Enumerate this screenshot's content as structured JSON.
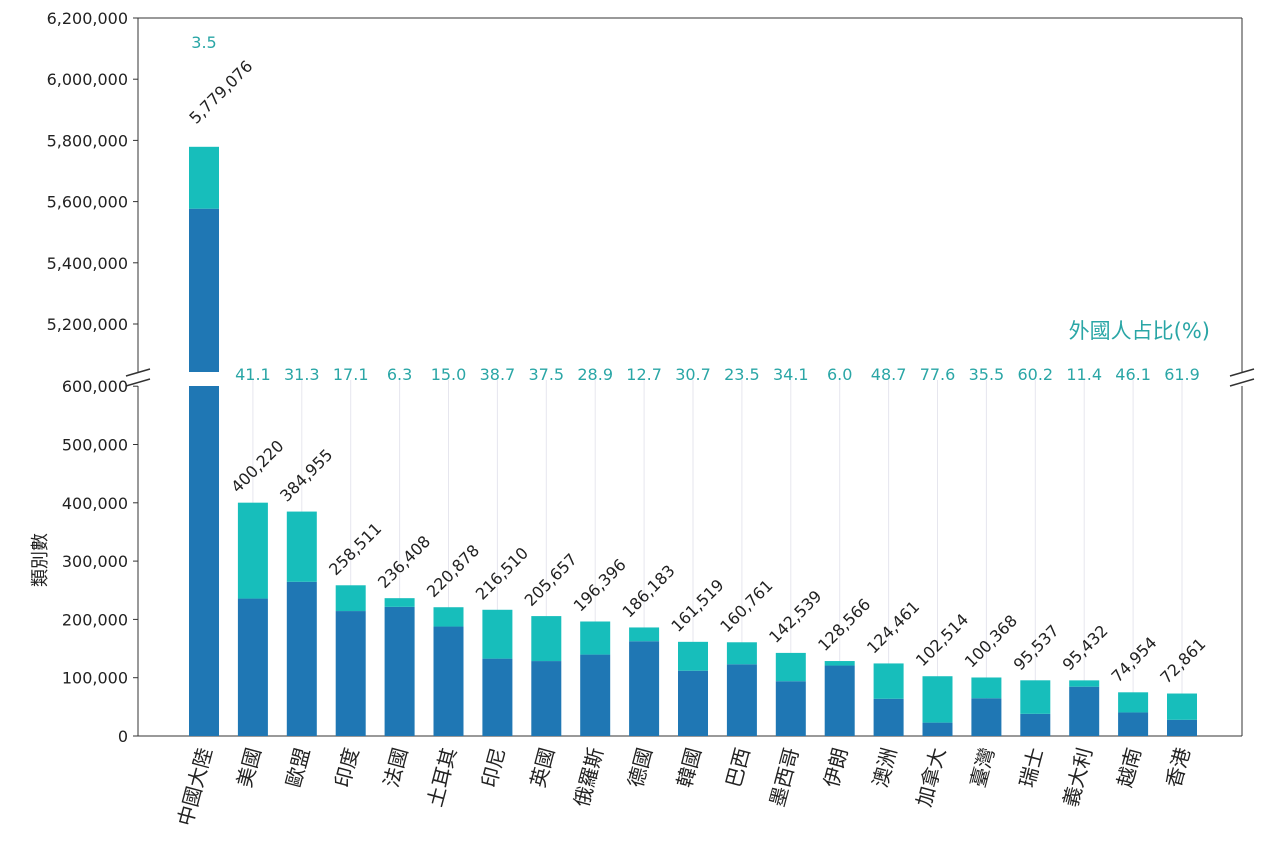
{
  "chart_data": {
    "type": "bar",
    "stacked": true,
    "broken_y_axis": true,
    "ylabel": "類別數",
    "secondary_label": "外國人占比(%)",
    "ylim_lower": [
      0,
      600000
    ],
    "ylim_upper": [
      5100000,
      6200000
    ],
    "yticks_lower": [
      "0",
      "100,000",
      "200,000",
      "300,000",
      "400,000",
      "500,000",
      "600,000"
    ],
    "yticks_upper": [
      "5,200,000",
      "5,400,000",
      "5,600,000",
      "5,800,000",
      "6,000,000",
      "6,200,000"
    ],
    "categories": [
      "中國大陸",
      "美國",
      "歐盟",
      "印度",
      "法國",
      "土耳其",
      "印尼",
      "英國",
      "俄羅斯",
      "德國",
      "韓國",
      "巴西",
      "墨西哥",
      "伊朗",
      "澳洲",
      "加拿大",
      "臺灣",
      "瑞士",
      "義大利",
      "越南",
      "香港"
    ],
    "total_labels": [
      "5,779,076",
      "400,220",
      "384,955",
      "258,511",
      "236,408",
      "220,878",
      "216,510",
      "205,657",
      "196,396",
      "186,183",
      "161,519",
      "160,761",
      "142,539",
      "128,566",
      "124,461",
      "102,514",
      "100,368",
      "95,537",
      "95,432",
      "74,954",
      "72,861"
    ],
    "totals": [
      5779076,
      400220,
      384955,
      258511,
      236408,
      220878,
      216510,
      205657,
      196396,
      186183,
      161519,
      160761,
      142539,
      128566,
      124461,
      102514,
      100368,
      95537,
      95432,
      74954,
      72861
    ],
    "foreign_share_labels": [
      "3.5",
      "41.1",
      "31.3",
      "17.1",
      "6.3",
      "15.0",
      "38.7",
      "37.5",
      "28.9",
      "12.7",
      "30.7",
      "23.5",
      "34.1",
      "6.0",
      "48.7",
      "77.6",
      "35.5",
      "60.2",
      "11.4",
      "46.1",
      "61.9"
    ],
    "foreign_share_pct": [
      3.5,
      41.1,
      31.3,
      17.1,
      6.3,
      15.0,
      38.7,
      37.5,
      28.9,
      12.7,
      30.7,
      23.5,
      34.1,
      6.0,
      48.7,
      77.6,
      35.5,
      60.2,
      11.4,
      46.1,
      61.9
    ],
    "colors": {
      "domestic": "#1f77b4",
      "foreign": "#17bebb",
      "pct_text": "#2aa6a6"
    }
  }
}
